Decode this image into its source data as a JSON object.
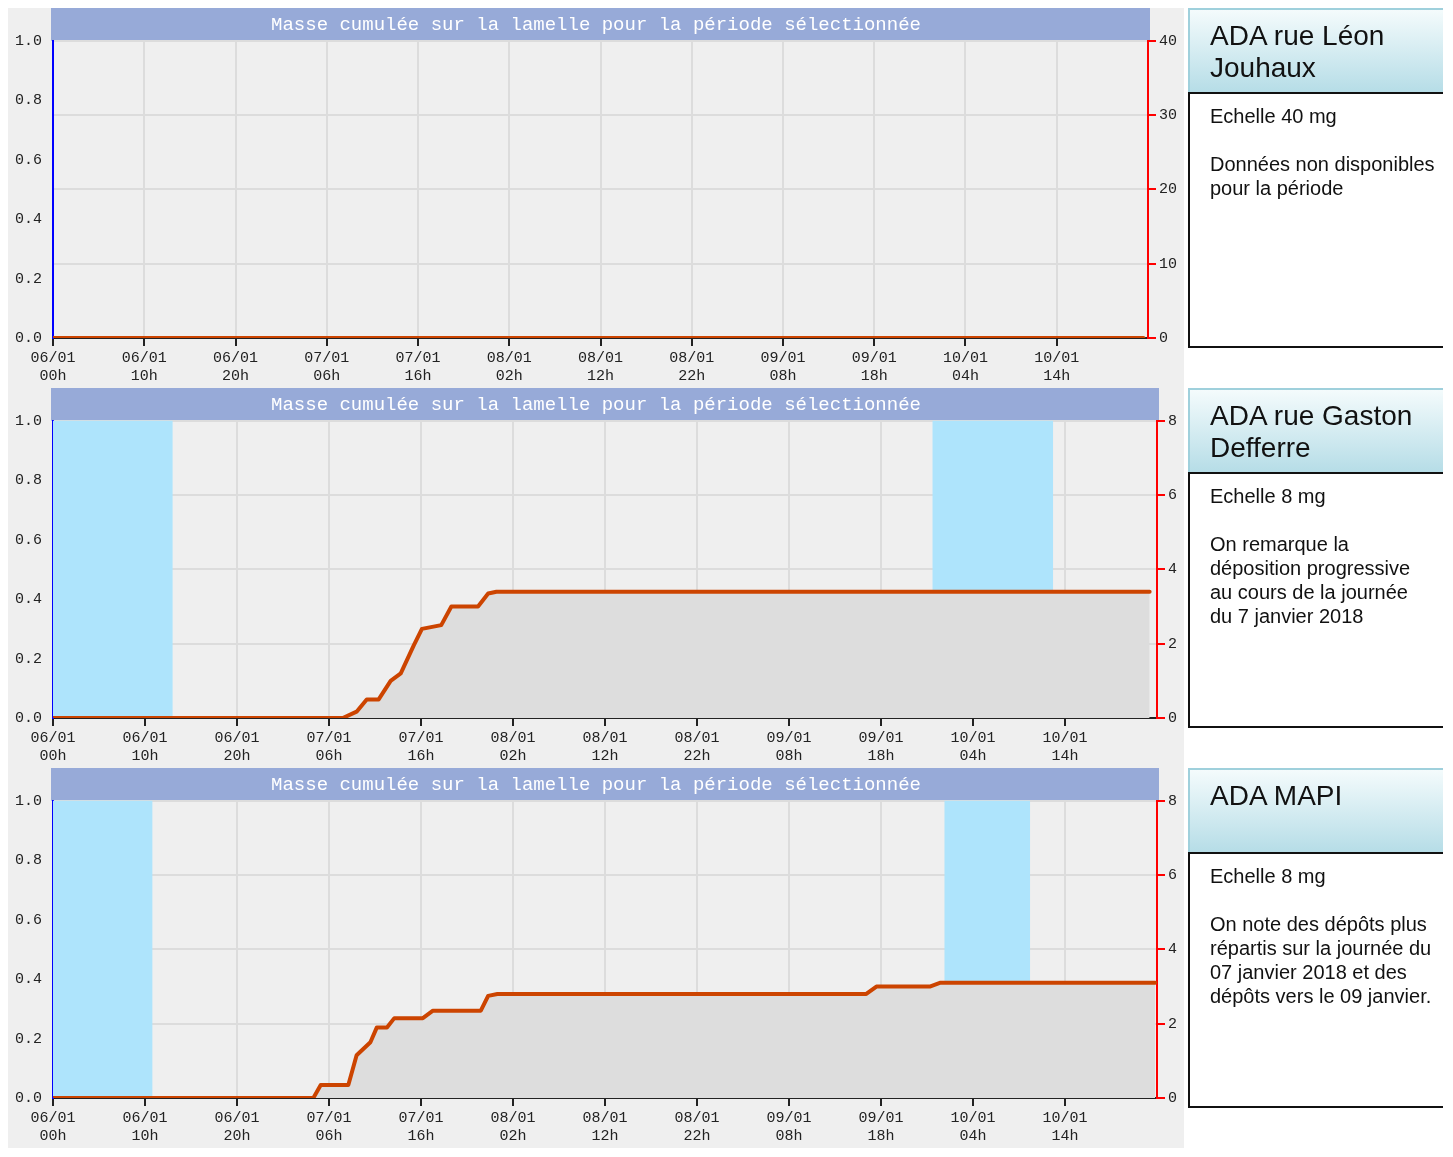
{
  "chart_data": [
    {
      "type": "line",
      "title": "Masse cumulée sur la lamelle pour la période sélectionnée",
      "xlim": [
        "2018-01-06T00:00",
        "2018-01-11T00:00"
      ],
      "xticks": [
        {
          "value": "2018-01-06T00:00",
          "label": "06/01 00h"
        },
        {
          "value": "2018-01-06T10:00",
          "label": "06/01 10h"
        },
        {
          "value": "2018-01-06T20:00",
          "label": "06/01 20h"
        },
        {
          "value": "2018-01-07T06:00",
          "label": "07/01 06h"
        },
        {
          "value": "2018-01-07T16:00",
          "label": "07/01 16h"
        },
        {
          "value": "2018-01-08T02:00",
          "label": "08/01 02h"
        },
        {
          "value": "2018-01-08T12:00",
          "label": "08/01 12h"
        },
        {
          "value": "2018-01-08T22:00",
          "label": "08/01 22h"
        },
        {
          "value": "2018-01-09T08:00",
          "label": "09/01 08h"
        },
        {
          "value": "2018-01-09T18:00",
          "label": "09/01 18h"
        },
        {
          "value": "2018-01-10T04:00",
          "label": "10/01 04h"
        },
        {
          "value": "2018-01-10T14:00",
          "label": "10/01 14h"
        }
      ],
      "ylim": [
        0,
        1
      ],
      "yticks": [
        {
          "value": 0,
          "label": "0.0"
        },
        {
          "value": 0.2,
          "label": "0.2"
        },
        {
          "value": 0.4,
          "label": "0.4"
        },
        {
          "value": 0.6,
          "label": "0.6"
        },
        {
          "value": 0.8,
          "label": "0.8"
        },
        {
          "value": 1,
          "label": "1.0"
        }
      ],
      "y2lim": [
        0,
        40
      ],
      "y2ticks": [
        0,
        10,
        20,
        30,
        40
      ],
      "grid": true,
      "series": [
        {
          "color": "#cc4400",
          "axis": "y2",
          "x": [
            "2018-01-06T00:00",
            "2018-01-10T23:30"
          ],
          "values": [
            0,
            0
          ]
        }
      ],
      "annotations": [
        "ADA rue Léon Jouhaux",
        "Echelle 40 mg",
        "Données non disponibles pour la période"
      ]
    },
    {
      "type": "area",
      "title": "Masse cumulée sur la lamelle pour la période sélectionnée",
      "xlim": [
        "2018-01-06T00:00",
        "2018-01-11T00:00"
      ],
      "xticks": [
        {
          "value": "2018-01-06T00:00",
          "label": "06/01 00h"
        },
        {
          "value": "2018-01-06T10:00",
          "label": "06/01 10h"
        },
        {
          "value": "2018-01-06T20:00",
          "label": "06/01 20h"
        },
        {
          "value": "2018-01-07T06:00",
          "label": "07/01 06h"
        },
        {
          "value": "2018-01-07T16:00",
          "label": "07/01 16h"
        },
        {
          "value": "2018-01-08T02:00",
          "label": "08/01 02h"
        },
        {
          "value": "2018-01-08T12:00",
          "label": "08/01 12h"
        },
        {
          "value": "2018-01-08T22:00",
          "label": "08/01 22h"
        },
        {
          "value": "2018-01-09T08:00",
          "label": "09/01 08h"
        },
        {
          "value": "2018-01-09T18:00",
          "label": "09/01 18h"
        },
        {
          "value": "2018-01-10T04:00",
          "label": "10/01 04h"
        },
        {
          "value": "2018-01-10T14:00",
          "label": "10/01 14h"
        }
      ],
      "ylim": [
        0,
        1
      ],
      "yticks": [
        {
          "value": 0,
          "label": "0.0"
        },
        {
          "value": 0.2,
          "label": "0.2"
        },
        {
          "value": 0.4,
          "label": "0.4"
        },
        {
          "value": 0.6,
          "label": "0.6"
        },
        {
          "value": 0.8,
          "label": "0.8"
        },
        {
          "value": 1,
          "label": "1.0"
        }
      ],
      "y2lim": [
        0,
        8
      ],
      "y2ticks": [
        0,
        2,
        4,
        6,
        8
      ],
      "grid": true,
      "series": [
        {
          "color": "#cc4400",
          "axis": "y2",
          "x": [
            "2018-01-06T00:00",
            "2018-01-07T07:30",
            "2018-01-07T09:00",
            "2018-01-07T10:06",
            "2018-01-07T11:24",
            "2018-01-07T12:42",
            "2018-01-07T13:48",
            "2018-01-07T15:12",
            "2018-01-07T16:06",
            "2018-01-07T18:12",
            "2018-01-07T19:18",
            "2018-01-07T22:12",
            "2018-01-07T23:18",
            "2018-01-08T00:12",
            "2018-01-10T23:12"
          ],
          "values": [
            0,
            0,
            0.17,
            0.5,
            0.5,
            1.0,
            1.2,
            1.95,
            2.4,
            2.5,
            3.0,
            3.0,
            3.35,
            3.4,
            3.4
          ]
        }
      ],
      "bands": [
        {
          "axis": "x",
          "from": "2018-01-06T00:00",
          "to": "2018-01-06T13:00",
          "color": "#aee4fc"
        },
        {
          "axis": "x",
          "from": "2018-01-09T23:36",
          "to": "2018-01-10T12:42",
          "color": "#aee4fc"
        }
      ],
      "annotations": [
        "ADA rue Gaston Defferre",
        "Echelle 8 mg",
        "On remarque la déposition progressive au cours de la journée du 7 janvier 2018"
      ]
    },
    {
      "type": "area",
      "title": "Masse cumulée sur la lamelle pour la période sélectionnée",
      "xlim": [
        "2018-01-06T00:00",
        "2018-01-11T00:00"
      ],
      "xticks": [
        {
          "value": "2018-01-06T00:00",
          "label": "06/01 00h"
        },
        {
          "value": "2018-01-06T10:00",
          "label": "06/01 10h"
        },
        {
          "value": "2018-01-06T20:00",
          "label": "06/01 20h"
        },
        {
          "value": "2018-01-07T06:00",
          "label": "07/01 06h"
        },
        {
          "value": "2018-01-07T16:00",
          "label": "07/01 16h"
        },
        {
          "value": "2018-01-08T02:00",
          "label": "08/01 02h"
        },
        {
          "value": "2018-01-08T12:00",
          "label": "08/01 12h"
        },
        {
          "value": "2018-01-08T22:00",
          "label": "08/01 22h"
        },
        {
          "value": "2018-01-09T08:00",
          "label": "09/01 08h"
        },
        {
          "value": "2018-01-09T18:00",
          "label": "09/01 18h"
        },
        {
          "value": "2018-01-10T04:00",
          "label": "10/01 04h"
        },
        {
          "value": "2018-01-10T14:00",
          "label": "10/01 14h"
        }
      ],
      "ylim": [
        0,
        1
      ],
      "yticks": [
        {
          "value": 0,
          "label": "0.0"
        },
        {
          "value": 0.2,
          "label": "0.2"
        },
        {
          "value": 0.4,
          "label": "0.4"
        },
        {
          "value": 0.6,
          "label": "0.6"
        },
        {
          "value": 0.8,
          "label": "0.8"
        },
        {
          "value": 1,
          "label": "1.0"
        }
      ],
      "y2lim": [
        0,
        8
      ],
      "y2ticks": [
        0,
        2,
        4,
        6,
        8
      ],
      "grid": true,
      "series": [
        {
          "color": "#cc4400",
          "axis": "y2",
          "x": [
            "2018-01-06T00:00",
            "2018-01-07T04:18",
            "2018-01-07T05:06",
            "2018-01-07T08:06",
            "2018-01-07T09:00",
            "2018-01-07T10:30",
            "2018-01-07T11:12",
            "2018-01-07T12:18",
            "2018-01-07T13:06",
            "2018-01-07T16:12",
            "2018-01-07T17:18",
            "2018-01-07T22:30",
            "2018-01-07T23:18",
            "2018-01-08T00:18",
            "2018-01-09T16:24",
            "2018-01-09T17:30",
            "2018-01-09T23:18",
            "2018-01-10T00:24",
            "2018-01-10T23:48"
          ],
          "values": [
            0,
            0,
            0.35,
            0.35,
            1.15,
            1.5,
            1.9,
            1.9,
            2.15,
            2.15,
            2.35,
            2.35,
            2.75,
            2.8,
            2.8,
            3.0,
            3.0,
            3.1,
            3.1
          ]
        }
      ],
      "bands": [
        {
          "axis": "x",
          "from": "2018-01-06T00:00",
          "to": "2018-01-06T10:48",
          "color": "#aee4fc"
        },
        {
          "axis": "x",
          "from": "2018-01-10T00:54",
          "to": "2018-01-10T10:12",
          "color": "#aee4fc"
        }
      ],
      "annotations": [
        "ADA MAPI",
        "Echelle 8 mg",
        "On note des dépôts plus répartis sur la journée du 07 janvier 2018 et des dépôts vers le 09 janvier."
      ]
    }
  ]
}
